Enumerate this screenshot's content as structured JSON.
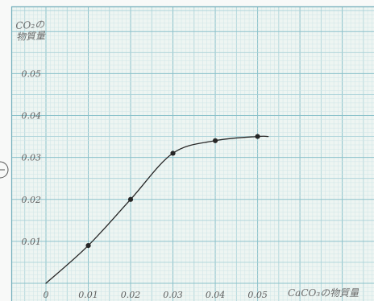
{
  "chart_data": {
    "type": "line",
    "xlabel": "CaCO₃の物質量",
    "ylabel": "CO₂の\n物質量",
    "x": [
      0.01,
      0.02,
      0.03,
      0.04,
      0.05
    ],
    "y": [
      0.009,
      0.02,
      0.031,
      0.034,
      0.035
    ],
    "line": {
      "x": [
        0,
        0.01,
        0.02,
        0.03,
        0.04,
        0.05,
        0.0525
      ],
      "y": [
        0,
        0.009,
        0.02,
        0.031,
        0.034,
        0.035,
        0.035
      ]
    },
    "xticks": [
      0,
      0.01,
      0.02,
      0.03,
      0.04,
      0.05
    ],
    "xtick_labels": [
      "0",
      "0.01",
      "0.02",
      "0.03",
      "0.04",
      "0.05"
    ],
    "yticks": [
      0.01,
      0.02,
      0.03,
      0.04,
      0.05
    ],
    "ytick_labels": [
      "0.01",
      "0.02",
      "0.03",
      "0.04",
      "0.05"
    ],
    "xlim": [
      0,
      0.0775
    ],
    "ylim": [
      0,
      0.066
    ],
    "grid": true
  },
  "colors": {
    "paper": "#eef5f2",
    "grid_minor": "#cfe5e7",
    "grid_mid": "#a9d2d8",
    "grid_major": "#8cc2cb",
    "frame": "#74aebb",
    "ink": "#262626",
    "pencil": "#606060"
  }
}
